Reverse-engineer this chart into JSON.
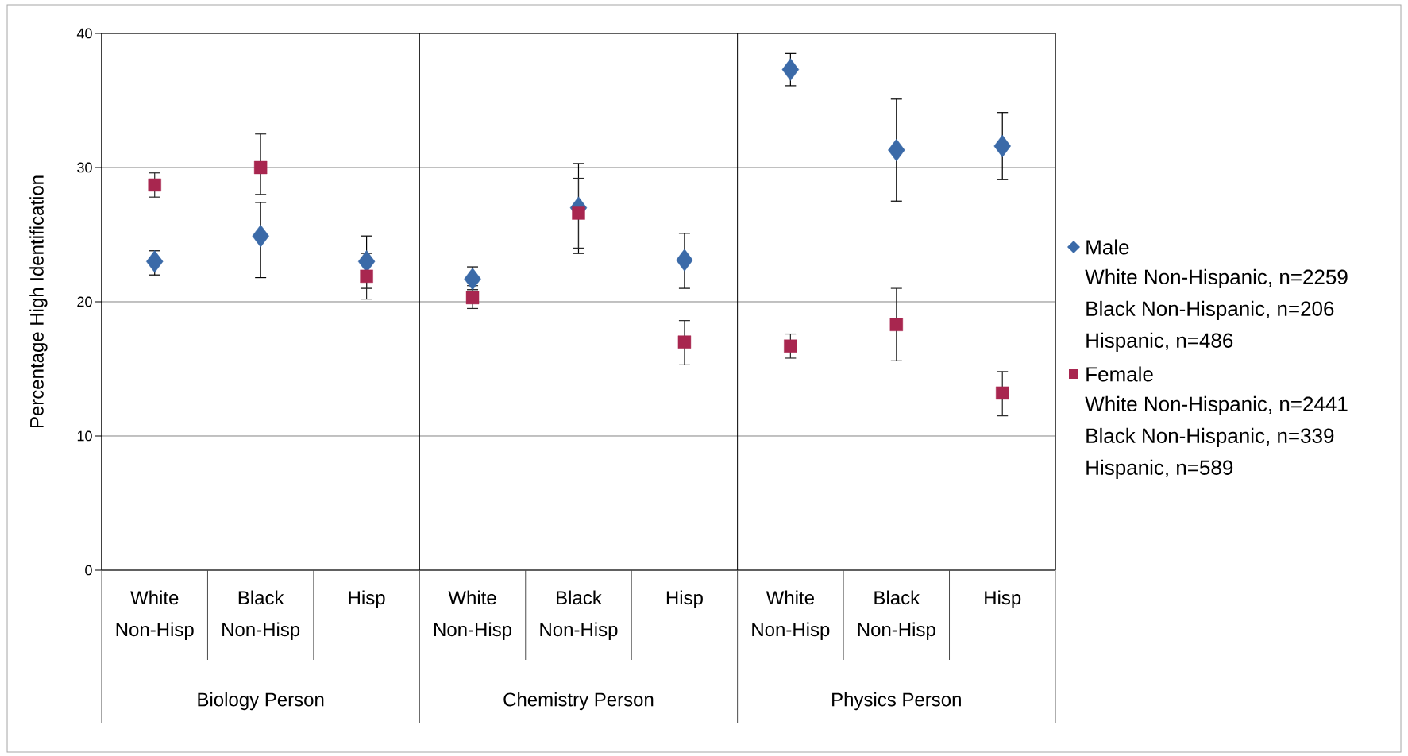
{
  "chart_data": {
    "type": "scatter",
    "ylabel": "Percentage High Identification",
    "categories": [
      "White Non-Hisp",
      "Black Non-Hisp",
      "Hisp",
      "White Non-Hisp",
      "Black Non-Hisp",
      "Hisp",
      "White Non-Hisp",
      "Black Non-Hisp",
      "Hisp"
    ],
    "series": [
      {
        "name": "Male",
        "color": "#3b6aa8",
        "marker": "diamond",
        "values": [
          23.0,
          24.9,
          23.0,
          21.7,
          27.0,
          23.1,
          37.3,
          31.3,
          31.6
        ],
        "errors": [
          [
            22.0,
            23.8
          ],
          [
            21.8,
            27.4
          ],
          [
            21.0,
            24.9
          ],
          [
            20.9,
            22.6
          ],
          [
            23.6,
            30.3
          ],
          [
            21.0,
            25.1
          ],
          [
            36.1,
            38.5
          ],
          [
            27.5,
            35.1
          ],
          [
            29.1,
            34.1
          ]
        ]
      },
      {
        "name": "Female",
        "color": "#a8264f",
        "marker": "square",
        "values": [
          28.7,
          30.0,
          21.9,
          20.3,
          26.6,
          17.0,
          16.7,
          18.3,
          13.2
        ],
        "errors": [
          [
            27.8,
            29.6
          ],
          [
            28.0,
            32.5
          ],
          [
            20.2,
            23.6
          ],
          [
            19.5,
            21.2
          ],
          [
            24.0,
            29.2
          ],
          [
            15.3,
            18.6
          ],
          [
            15.8,
            17.6
          ],
          [
            15.6,
            21.0
          ],
          [
            11.5,
            14.8
          ]
        ]
      }
    ],
    "annotations": [
      "Biology Person",
      "Chemistry Person",
      "Physics Person",
      "White Non-Hispanic, n=2259",
      "Black Non-Hispanic, n=206",
      "Hispanic, n=486",
      "White Non-Hispanic, n=2441",
      "Black Non-Hispanic, n=339",
      "Hispanic, n=589"
    ],
    "ylim": [
      0,
      40
    ],
    "yticks": [
      0,
      10,
      20,
      30,
      40
    ],
    "grid": "y",
    "legend": "right"
  }
}
